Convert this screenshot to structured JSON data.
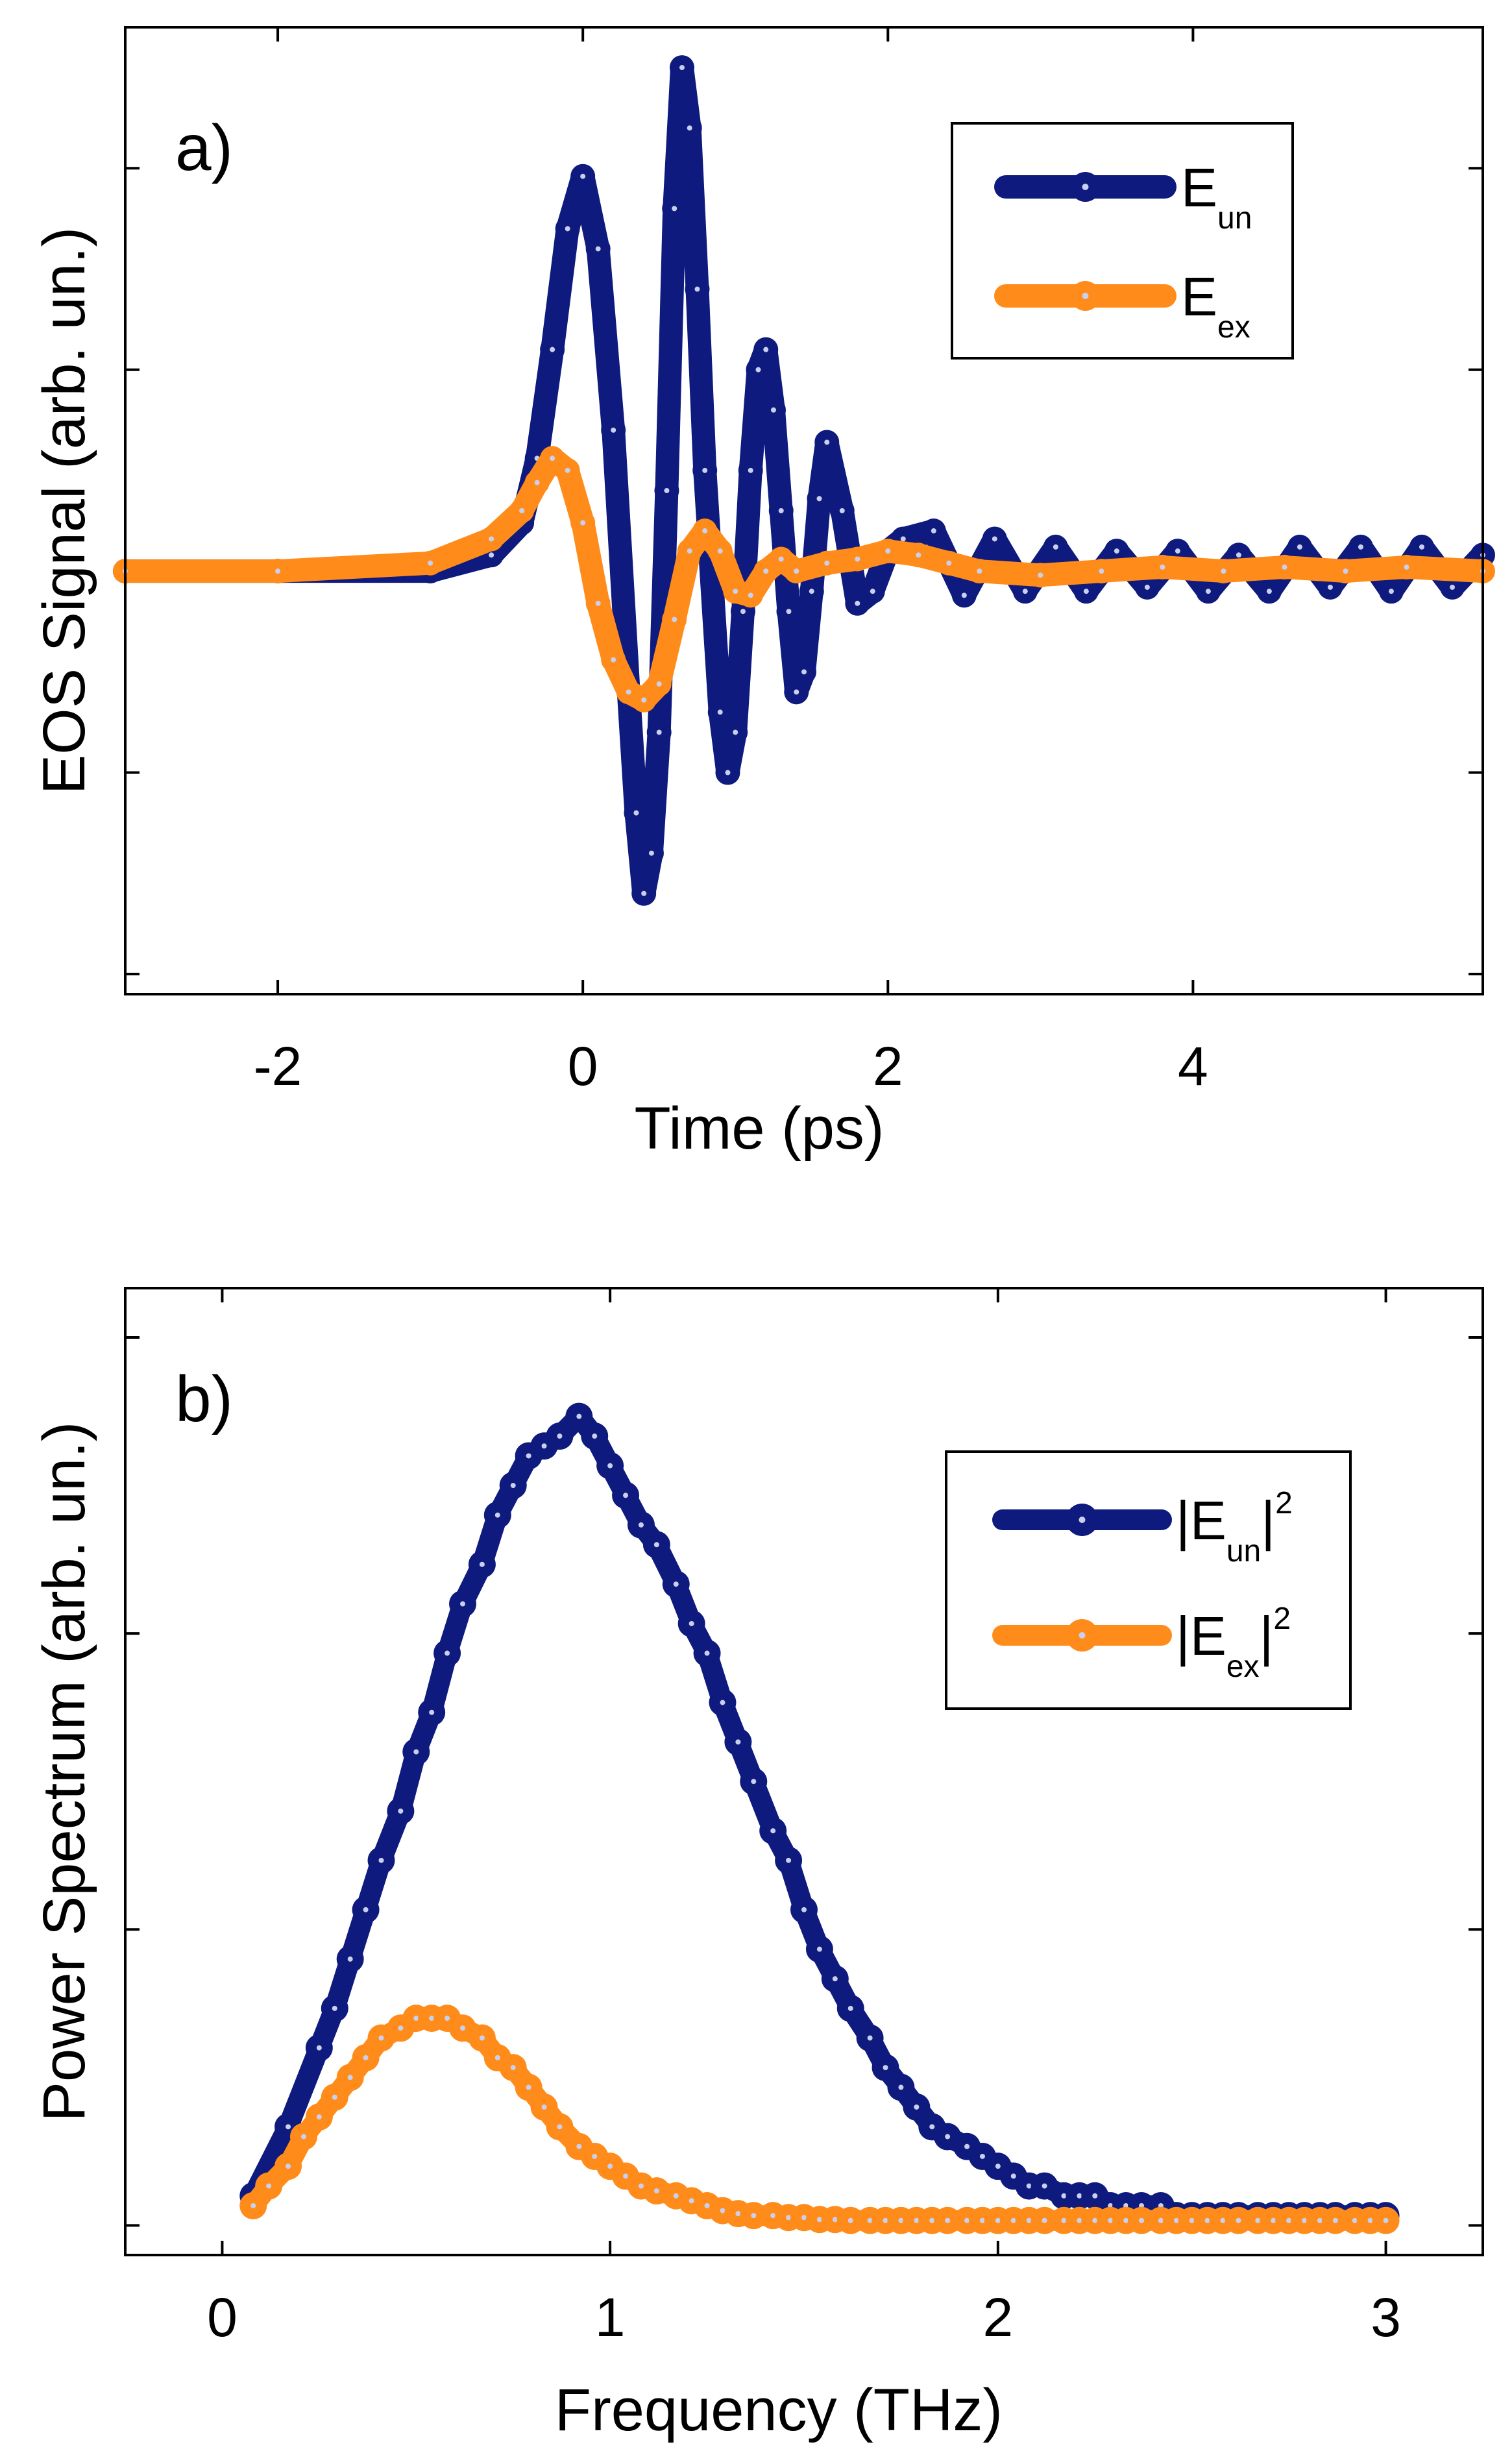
{
  "colors": {
    "series_dark": "#0e1a7d",
    "series_orange": "#ff8c1a",
    "marker_highlight": "#c9cfee"
  },
  "chart_data": [
    {
      "type": "line",
      "panel_label": "a)",
      "xlabel": "Time (ps)",
      "ylabel": "EOS Signal (arb. un.)",
      "xlim": [
        -3.0,
        5.9
      ],
      "ylim": [
        -1.05,
        1.35
      ],
      "xticks": [
        -2,
        0,
        2,
        4
      ],
      "xtick_labels": [
        "-2",
        "0",
        "2",
        "4"
      ],
      "yticks": [
        -1.0,
        -0.5,
        0.5,
        1.0
      ],
      "ytick_labels_visible": false,
      "legend_position": "top-right",
      "series": [
        {
          "name": "E",
          "name_sub": "un",
          "color": "#0e1a7d",
          "x": [
            -3.0,
            -2.0,
            -1.0,
            -0.6,
            -0.4,
            -0.3,
            -0.2,
            -0.1,
            0.0,
            0.1,
            0.2,
            0.3,
            0.35,
            0.4,
            0.45,
            0.5,
            0.55,
            0.6,
            0.65,
            0.7,
            0.75,
            0.8,
            0.9,
            0.95,
            1.0,
            1.05,
            1.1,
            1.15,
            1.2,
            1.25,
            1.3,
            1.35,
            1.4,
            1.45,
            1.5,
            1.55,
            1.6,
            1.7,
            1.8,
            1.9,
            2.0,
            2.1,
            2.3,
            2.5,
            2.7,
            2.9,
            3.1,
            3.3,
            3.5,
            3.7,
            3.9,
            4.1,
            4.3,
            4.5,
            4.7,
            4.9,
            5.1,
            5.3,
            5.5,
            5.7,
            5.9
          ],
          "y": [
            0.0,
            0.0,
            0.0,
            0.04,
            0.12,
            0.28,
            0.55,
            0.85,
            0.98,
            0.8,
            0.35,
            -0.3,
            -0.6,
            -0.8,
            -0.7,
            -0.4,
            0.2,
            0.9,
            1.25,
            1.1,
            0.7,
            0.25,
            -0.35,
            -0.5,
            -0.4,
            -0.1,
            0.25,
            0.5,
            0.55,
            0.4,
            0.15,
            -0.1,
            -0.3,
            -0.25,
            -0.05,
            0.18,
            0.32,
            0.15,
            -0.08,
            -0.05,
            0.05,
            0.08,
            0.1,
            -0.06,
            0.08,
            -0.05,
            0.06,
            -0.05,
            0.05,
            -0.04,
            0.05,
            -0.05,
            0.04,
            -0.05,
            0.06,
            -0.04,
            0.06,
            -0.05,
            0.06,
            -0.04,
            0.04
          ]
        },
        {
          "name": "E",
          "name_sub": "ex",
          "color": "#ff8c1a",
          "x": [
            -3.0,
            -2.0,
            -1.0,
            -0.6,
            -0.4,
            -0.3,
            -0.2,
            -0.1,
            0.0,
            0.1,
            0.2,
            0.3,
            0.4,
            0.5,
            0.6,
            0.7,
            0.8,
            0.9,
            1.0,
            1.1,
            1.2,
            1.3,
            1.4,
            1.6,
            1.8,
            2.0,
            2.2,
            2.4,
            2.6,
            3.0,
            3.4,
            3.8,
            4.2,
            4.6,
            5.0,
            5.4,
            5.9
          ],
          "y": [
            0.0,
            0.0,
            0.02,
            0.08,
            0.15,
            0.22,
            0.28,
            0.25,
            0.12,
            -0.08,
            -0.22,
            -0.3,
            -0.32,
            -0.28,
            -0.12,
            0.05,
            0.1,
            0.05,
            -0.05,
            -0.06,
            0.0,
            0.03,
            0.0,
            0.02,
            0.03,
            0.05,
            0.04,
            0.02,
            0.0,
            -0.01,
            0.0,
            0.01,
            0.0,
            0.01,
            0.0,
            0.01,
            0.0
          ]
        }
      ]
    },
    {
      "type": "line",
      "panel_label": "b)",
      "xlabel": "Frequency (THz)",
      "ylabel": "Power Spectrum (arb. un.)",
      "xlim": [
        -0.25,
        3.25
      ],
      "ylim": [
        -0.03,
        0.95
      ],
      "xticks": [
        0,
        1,
        2,
        3
      ],
      "xtick_labels": [
        "0",
        "1",
        "2",
        "3"
      ],
      "yticks": [
        0.0,
        0.3,
        0.6,
        0.9
      ],
      "ytick_labels_visible": false,
      "legend_position": "right",
      "series": [
        {
          "name": "|E",
          "name_sub": "un",
          "name_suffix": "|",
          "name_sup": "2",
          "color": "#0e1a7d",
          "x": [
            0.08,
            0.17,
            0.25,
            0.29,
            0.33,
            0.37,
            0.41,
            0.46,
            0.5,
            0.54,
            0.58,
            0.62,
            0.67,
            0.71,
            0.75,
            0.79,
            0.83,
            0.87,
            0.92,
            0.96,
            1.0,
            1.04,
            1.08,
            1.12,
            1.17,
            1.21,
            1.25,
            1.29,
            1.33,
            1.37,
            1.42,
            1.46,
            1.5,
            1.54,
            1.58,
            1.62,
            1.67,
            1.71,
            1.75,
            1.79,
            1.83,
            1.87,
            1.92,
            1.96,
            2.0,
            2.04,
            2.08,
            2.12,
            2.17,
            2.21,
            2.25,
            2.29,
            2.33,
            2.37,
            2.42,
            2.46,
            2.5,
            2.54,
            2.58,
            2.62,
            2.67,
            2.71,
            2.75,
            2.79,
            2.83,
            2.87,
            2.92,
            2.96,
            3.0
          ],
          "y": [
            0.03,
            0.1,
            0.18,
            0.22,
            0.27,
            0.32,
            0.37,
            0.42,
            0.48,
            0.52,
            0.58,
            0.63,
            0.67,
            0.72,
            0.75,
            0.78,
            0.79,
            0.8,
            0.82,
            0.8,
            0.77,
            0.74,
            0.71,
            0.69,
            0.65,
            0.61,
            0.58,
            0.53,
            0.49,
            0.45,
            0.4,
            0.37,
            0.32,
            0.28,
            0.25,
            0.22,
            0.19,
            0.16,
            0.14,
            0.12,
            0.1,
            0.09,
            0.08,
            0.07,
            0.06,
            0.05,
            0.04,
            0.04,
            0.03,
            0.03,
            0.03,
            0.02,
            0.02,
            0.02,
            0.02,
            0.01,
            0.01,
            0.01,
            0.01,
            0.01,
            0.01,
            0.01,
            0.01,
            0.01,
            0.01,
            0.01,
            0.01,
            0.01,
            0.01
          ]
        },
        {
          "name": "|E",
          "name_sub": "ex",
          "name_suffix": "|",
          "name_sup": "2",
          "color": "#ff8c1a",
          "x": [
            0.08,
            0.12,
            0.17,
            0.21,
            0.25,
            0.29,
            0.33,
            0.37,
            0.41,
            0.46,
            0.5,
            0.54,
            0.58,
            0.62,
            0.67,
            0.71,
            0.75,
            0.79,
            0.83,
            0.87,
            0.92,
            0.96,
            1.0,
            1.04,
            1.08,
            1.12,
            1.17,
            1.21,
            1.25,
            1.29,
            1.33,
            1.37,
            1.42,
            1.46,
            1.5,
            1.54,
            1.58,
            1.62,
            1.67,
            1.71,
            1.75,
            1.79,
            1.83,
            1.87,
            1.92,
            1.96,
            2.0,
            2.04,
            2.08,
            2.12,
            2.17,
            2.21,
            2.25,
            2.29,
            2.33,
            2.37,
            2.42,
            2.46,
            2.5,
            2.54,
            2.58,
            2.62,
            2.67,
            2.71,
            2.75,
            2.79,
            2.83,
            2.87,
            2.92,
            2.96,
            3.0
          ],
          "y": [
            0.02,
            0.04,
            0.06,
            0.09,
            0.11,
            0.13,
            0.15,
            0.17,
            0.19,
            0.2,
            0.21,
            0.21,
            0.21,
            0.2,
            0.19,
            0.17,
            0.16,
            0.14,
            0.12,
            0.1,
            0.08,
            0.07,
            0.06,
            0.05,
            0.04,
            0.035,
            0.03,
            0.025,
            0.02,
            0.015,
            0.012,
            0.01,
            0.01,
            0.008,
            0.008,
            0.006,
            0.006,
            0.005,
            0.005,
            0.005,
            0.005,
            0.005,
            0.005,
            0.005,
            0.005,
            0.005,
            0.005,
            0.005,
            0.005,
            0.005,
            0.005,
            0.005,
            0.005,
            0.005,
            0.005,
            0.005,
            0.005,
            0.005,
            0.005,
            0.005,
            0.005,
            0.005,
            0.005,
            0.005,
            0.005,
            0.005,
            0.005,
            0.005,
            0.005,
            0.005,
            0.005
          ]
        }
      ]
    }
  ]
}
